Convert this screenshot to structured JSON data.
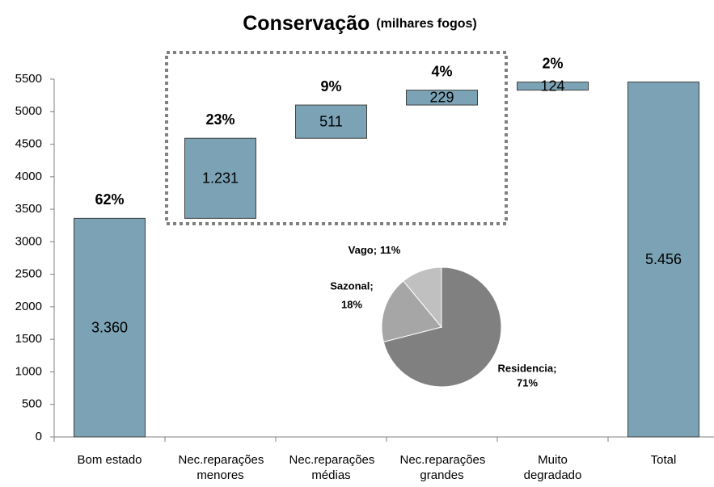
{
  "chart_data": [
    {
      "type": "waterfall",
      "title": "Conservação",
      "subtitle": "(milhares fogos)",
      "categories": [
        "Bom estado",
        "Nec.reparações menores",
        "Nec.reparações médias",
        "Nec.reparações grandes",
        "Muito degradado",
        "Total"
      ],
      "values": [
        3360,
        1231,
        511,
        229,
        124,
        5456
      ],
      "value_labels": [
        "3.360",
        "1.231",
        "511",
        "229",
        "124",
        "5.456"
      ],
      "percent_labels": [
        "62%",
        "23%",
        "9%",
        "4%",
        "2%",
        null
      ],
      "is_total": [
        false,
        false,
        false,
        false,
        false,
        true
      ],
      "color": "#7ba3b5",
      "ylim": [
        0,
        5500
      ],
      "yticks": [
        0,
        500,
        1000,
        1500,
        2000,
        2500,
        3000,
        3500,
        4000,
        4500,
        5000,
        5500
      ]
    },
    {
      "type": "pie",
      "categories": [
        "Residencia;",
        "Sazonal;",
        "Vago;"
      ],
      "values": [
        71,
        18,
        11
      ],
      "value_labels": [
        "71%",
        "18%",
        "11%"
      ],
      "colors": [
        "#808080",
        "#a6a6a6",
        "#c0c0c0"
      ]
    }
  ]
}
